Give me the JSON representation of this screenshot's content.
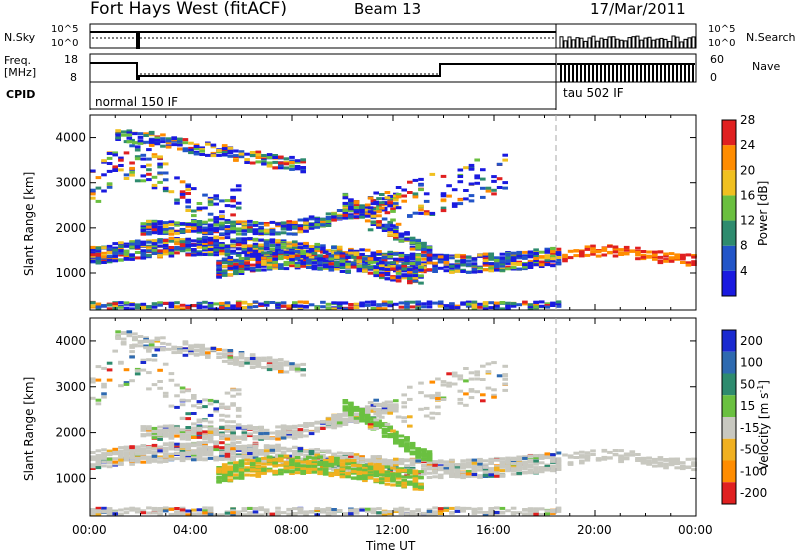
{
  "header": {
    "station": "Fort Hays West (fitACF)",
    "beam": "Beam 13",
    "date": "17/Mar/2011"
  },
  "strip": {
    "nsky_label": "N.Sky",
    "nsky_ticks": [
      "10^5",
      "10^0"
    ],
    "nsearch_label": "N.Search",
    "nsearch_ticks": [
      "10^5",
      "10^0"
    ],
    "freq_label_1": "Freq.",
    "freq_label_2": "[MHz]",
    "freq_ticks": [
      "18",
      "8"
    ],
    "nave_label": "Nave",
    "nave_ticks": [
      "60",
      "0"
    ],
    "cpid_label": "CPID",
    "cpid_1": "normal 150 IF",
    "cpid_2": "tau 502 IF"
  },
  "chart_data": [
    {
      "type": "heatmap",
      "name": "power-panel",
      "ylabel": "Slant Range [km]",
      "yticks": [
        "1000",
        "2000",
        "3000",
        "4000"
      ],
      "ylim": [
        180,
        4500
      ],
      "colorbar_label": "Power [dB]",
      "colorbar_ticks": [
        "4",
        "8",
        "12",
        "16",
        "20",
        "24",
        "28"
      ],
      "colors": [
        "#1a1ae0",
        "#2255c8",
        "#2e8b6e",
        "#6abf3f",
        "#f0c020",
        "#ff8c00",
        "#e02020"
      ]
    },
    {
      "type": "heatmap",
      "name": "velocity-panel",
      "ylabel": "Slant Range [km]",
      "yticks": [
        "1000",
        "2000",
        "3000",
        "4000"
      ],
      "ylim": [
        180,
        4500
      ],
      "colorbar_label": "Velocity [m s-1]",
      "colorbar_label_main": "Velocity [m s",
      "colorbar_label_sup": "-1",
      "colorbar_label_end": "]",
      "colorbar_ticks": [
        "200",
        "100",
        "50",
        "15",
        "-15",
        "-50",
        "-100",
        "-200"
      ],
      "colors": [
        "#1a2ad0",
        "#2e6ab0",
        "#2e8b6e",
        "#6ac040",
        "#c8c8c0",
        "#f0b020",
        "#ff8c00",
        "#e02020"
      ]
    }
  ],
  "xaxis": {
    "label": "Time UT",
    "ticks": [
      "00:00",
      "04:00",
      "08:00",
      "12:00",
      "16:00",
      "20:00",
      "00:00"
    ]
  }
}
